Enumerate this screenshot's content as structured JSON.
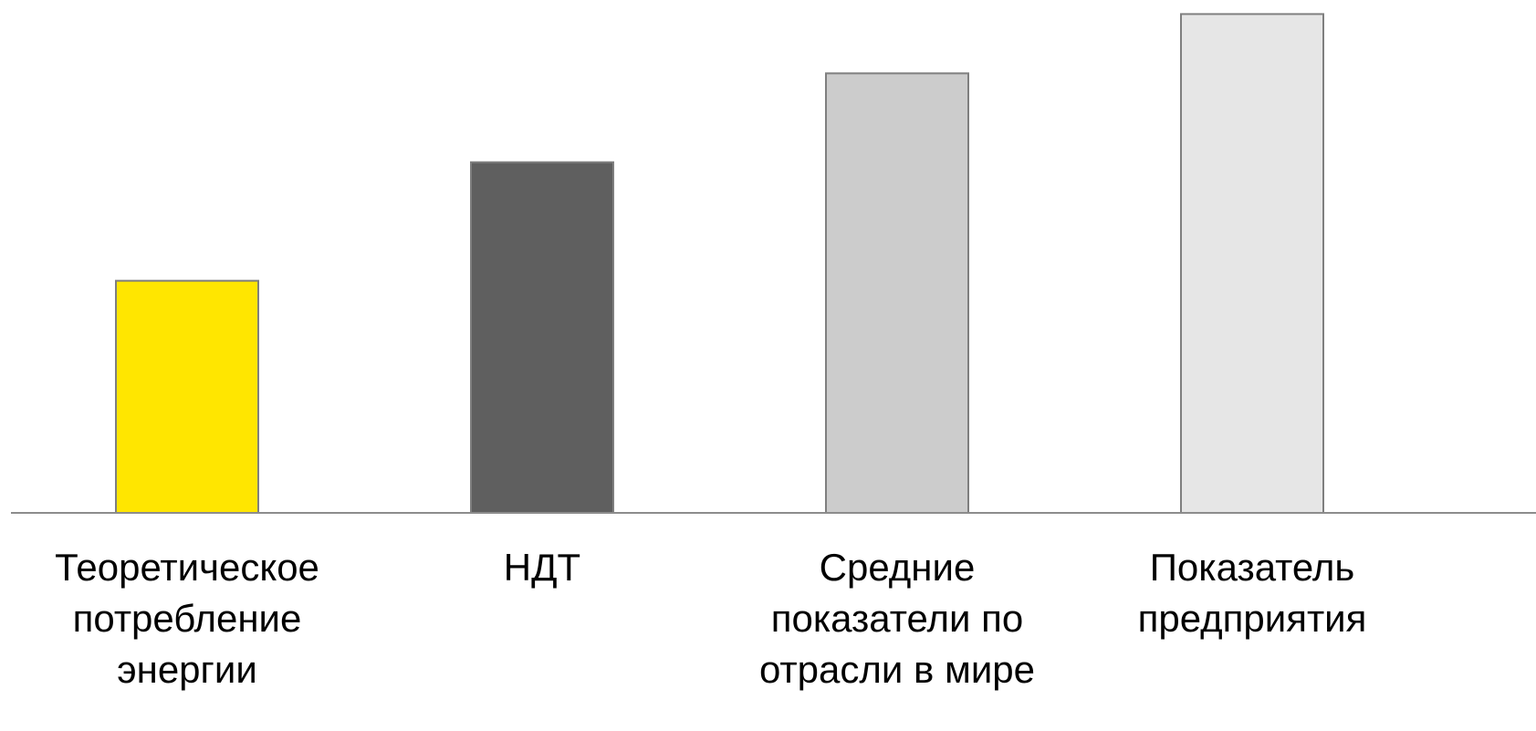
{
  "chart_data": {
    "type": "bar",
    "title": "",
    "xlabel": "",
    "ylabel": "",
    "categories": [
      "Теоретическое\nпотребление\nэнергии",
      "НДТ",
      "Средние\nпоказатели по\nотрасли в мире",
      "Показатель\nпредприятия"
    ],
    "values": [
      47,
      71,
      89,
      101
    ],
    "colors": [
      "#FFE600",
      "#5F5F5F",
      "#CCCCCC",
      "#E6E6E6"
    ],
    "ylim": [
      0,
      102
    ],
    "grid": false,
    "legend": "none"
  }
}
